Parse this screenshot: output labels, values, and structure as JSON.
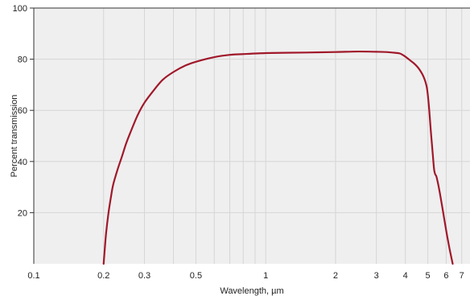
{
  "chart_data": {
    "type": "line",
    "xlabel": "Wavelength, µm",
    "ylabel": "Percent transmission",
    "x_scale": "log",
    "xlim": [
      0.1,
      7.6
    ],
    "ylim": [
      0,
      100
    ],
    "x_ticks": [
      0.1,
      0.2,
      0.3,
      0.5,
      1,
      2,
      3,
      4,
      5,
      6,
      7
    ],
    "x_tick_labels": [
      "0.1",
      "0.2",
      "0.3",
      "0.5",
      "1",
      "2",
      "3",
      "4",
      "5",
      "6",
      "7"
    ],
    "x_minor_grid": [
      0.4,
      0.6,
      0.7,
      0.8,
      0.9
    ],
    "y_ticks": [
      20,
      40,
      60,
      80,
      100
    ],
    "y_tick_labels": [
      "20",
      "40",
      "60",
      "80",
      "100"
    ],
    "grid": true,
    "series": [
      {
        "color": "#a0182a",
        "x": [
          0.2,
          0.202,
          0.205,
          0.21,
          0.215,
          0.22,
          0.23,
          0.24,
          0.25,
          0.26,
          0.28,
          0.3,
          0.33,
          0.36,
          0.4,
          0.45,
          0.5,
          0.6,
          0.7,
          0.8,
          1.0,
          1.2,
          1.5,
          2.0,
          2.5,
          3.0,
          3.3,
          3.6,
          3.8,
          4.0,
          4.2,
          4.4,
          4.6,
          4.8,
          4.95,
          5.05,
          5.15,
          5.25,
          5.32,
          5.38,
          5.45,
          5.6,
          5.8,
          6.0,
          6.2,
          6.4
        ],
        "y": [
          0,
          5,
          12,
          20,
          26,
          31,
          37,
          42,
          47,
          51,
          58,
          63,
          68,
          72,
          75,
          77.5,
          79,
          80.8,
          81.7,
          82,
          82.4,
          82.5,
          82.6,
          82.8,
          83,
          82.9,
          82.8,
          82.5,
          82.2,
          81,
          79.5,
          78,
          76,
          73,
          69,
          62,
          52,
          43,
          37,
          35,
          34,
          29,
          21,
          13,
          6,
          0
        ]
      }
    ]
  }
}
